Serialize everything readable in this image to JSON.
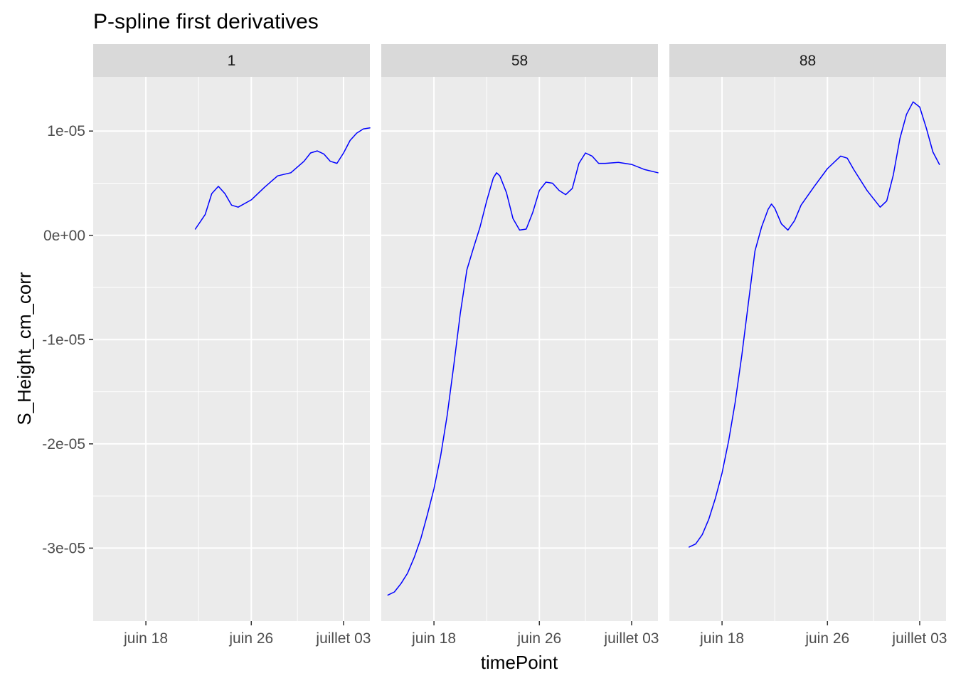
{
  "chart_data": {
    "type": "line",
    "title": "P-spline first derivatives",
    "xlabel": "timePoint",
    "ylabel": "S_Height_cm_corr",
    "x_tick_labels": [
      "juin 18",
      "juin 26",
      "juillet 03"
    ],
    "x_ticks": [
      "2019-06-18",
      "2019-06-26",
      "2019-07-03"
    ],
    "x_range": [
      "2019-06-14",
      "2019-07-05"
    ],
    "y_tick_labels": [
      "-3e-05",
      "-2e-05",
      "-1e-05",
      "0e+00",
      "1e-05"
    ],
    "y_ticks": [
      -3e-05,
      -2e-05,
      -1e-05,
      0,
      1e-05
    ],
    "ylim": [
      -3.7e-05,
      1.52e-05
    ],
    "line_color": "#0000ff",
    "grid": true,
    "legend": "none",
    "panels": [
      {
        "label": "1",
        "points": [
          [
            "2019-06-21T18:00",
            6e-07
          ],
          [
            "2019-06-22T12:00",
            2e-06
          ],
          [
            "2019-06-23T00:00",
            4e-06
          ],
          [
            "2019-06-23T12:00",
            4.7e-06
          ],
          [
            "2019-06-24T00:00",
            4e-06
          ],
          [
            "2019-06-24T12:00",
            2.9e-06
          ],
          [
            "2019-06-25T00:00",
            2.7e-06
          ],
          [
            "2019-06-26T00:00",
            3.4e-06
          ],
          [
            "2019-06-27T00:00",
            4.6e-06
          ],
          [
            "2019-06-28T00:00",
            5.7e-06
          ],
          [
            "2019-06-29T00:00",
            6e-06
          ],
          [
            "2019-06-30T00:00",
            7.1e-06
          ],
          [
            "2019-06-30T12:00",
            7.9e-06
          ],
          [
            "2019-07-01T00:00",
            8.1e-06
          ],
          [
            "2019-07-01T12:00",
            7.8e-06
          ],
          [
            "2019-07-02T00:00",
            7.1e-06
          ],
          [
            "2019-07-02T12:00",
            6.9e-06
          ],
          [
            "2019-07-03T00:00",
            7.9e-06
          ],
          [
            "2019-07-03T12:00",
            9.1e-06
          ],
          [
            "2019-07-04T00:00",
            9.8e-06
          ],
          [
            "2019-07-04T12:00",
            1.02e-05
          ],
          [
            "2019-07-05T00:00",
            1.03e-05
          ]
        ]
      },
      {
        "label": "58",
        "points": [
          [
            "2019-06-14T12:00",
            -3.45e-05
          ],
          [
            "2019-06-15T00:00",
            -3.42e-05
          ],
          [
            "2019-06-15T12:00",
            -3.34e-05
          ],
          [
            "2019-06-16T00:00",
            -3.24e-05
          ],
          [
            "2019-06-16T12:00",
            -3.09e-05
          ],
          [
            "2019-06-17T00:00",
            -2.91e-05
          ],
          [
            "2019-06-17T12:00",
            -2.68e-05
          ],
          [
            "2019-06-18T00:00",
            -2.43e-05
          ],
          [
            "2019-06-18T12:00",
            -2.12e-05
          ],
          [
            "2019-06-19T00:00",
            -1.73e-05
          ],
          [
            "2019-06-19T12:00",
            -1.25e-05
          ],
          [
            "2019-06-20T00:00",
            -7.5e-06
          ],
          [
            "2019-06-20T12:00",
            -3.3e-06
          ],
          [
            "2019-06-21T00:00",
            -1.2e-06
          ],
          [
            "2019-06-21T12:00",
            8e-07
          ],
          [
            "2019-06-22T00:00",
            3.3e-06
          ],
          [
            "2019-06-22T12:00",
            5.5e-06
          ],
          [
            "2019-06-22T18:00",
            6e-06
          ],
          [
            "2019-06-23T00:00",
            5.7e-06
          ],
          [
            "2019-06-23T12:00",
            4.1e-06
          ],
          [
            "2019-06-24T00:00",
            1.6e-06
          ],
          [
            "2019-06-24T12:00",
            5e-07
          ],
          [
            "2019-06-25T00:00",
            6e-07
          ],
          [
            "2019-06-25T12:00",
            2.2e-06
          ],
          [
            "2019-06-26T00:00",
            4.3e-06
          ],
          [
            "2019-06-26T12:00",
            5.1e-06
          ],
          [
            "2019-06-27T00:00",
            5e-06
          ],
          [
            "2019-06-27T12:00",
            4.3e-06
          ],
          [
            "2019-06-28T00:00",
            3.9e-06
          ],
          [
            "2019-06-28T12:00",
            4.5e-06
          ],
          [
            "2019-06-29T00:00",
            6.9e-06
          ],
          [
            "2019-06-29T12:00",
            7.9e-06
          ],
          [
            "2019-06-30T00:00",
            7.6e-06
          ],
          [
            "2019-06-30T12:00",
            6.9e-06
          ],
          [
            "2019-07-01T00:00",
            6.9e-06
          ],
          [
            "2019-07-02T00:00",
            7e-06
          ],
          [
            "2019-07-03T00:00",
            6.8e-06
          ],
          [
            "2019-07-04T00:00",
            6.3e-06
          ],
          [
            "2019-07-05T00:00",
            6e-06
          ]
        ]
      },
      {
        "label": "88",
        "points": [
          [
            "2019-06-15T12:00",
            -2.99e-05
          ],
          [
            "2019-06-16T00:00",
            -2.96e-05
          ],
          [
            "2019-06-16T12:00",
            -2.87e-05
          ],
          [
            "2019-06-17T00:00",
            -2.72e-05
          ],
          [
            "2019-06-17T12:00",
            -2.52e-05
          ],
          [
            "2019-06-18T00:00",
            -2.28e-05
          ],
          [
            "2019-06-18T12:00",
            -1.97e-05
          ],
          [
            "2019-06-19T00:00",
            -1.6e-05
          ],
          [
            "2019-06-19T12:00",
            -1.15e-05
          ],
          [
            "2019-06-20T00:00",
            -6.5e-06
          ],
          [
            "2019-06-20T12:00",
            -1.5e-06
          ],
          [
            "2019-06-21T00:00",
            8e-07
          ],
          [
            "2019-06-21T12:00",
            2.5e-06
          ],
          [
            "2019-06-21T18:00",
            3e-06
          ],
          [
            "2019-06-22T00:00",
            2.6e-06
          ],
          [
            "2019-06-22T12:00",
            1.1e-06
          ],
          [
            "2019-06-23T00:00",
            5e-07
          ],
          [
            "2019-06-23T12:00",
            1.4e-06
          ],
          [
            "2019-06-24T00:00",
            2.9e-06
          ],
          [
            "2019-06-25T00:00",
            4.7e-06
          ],
          [
            "2019-06-26T00:00",
            6.4e-06
          ],
          [
            "2019-06-27T00:00",
            7.6e-06
          ],
          [
            "2019-06-27T12:00",
            7.4e-06
          ],
          [
            "2019-06-28T00:00",
            6.3e-06
          ],
          [
            "2019-06-29T00:00",
            4.3e-06
          ],
          [
            "2019-06-30T00:00",
            2.7e-06
          ],
          [
            "2019-06-30T12:00",
            3.3e-06
          ],
          [
            "2019-07-01T00:00",
            5.8e-06
          ],
          [
            "2019-07-01T12:00",
            9.3e-06
          ],
          [
            "2019-07-02T00:00",
            1.16e-05
          ],
          [
            "2019-07-02T12:00",
            1.28e-05
          ],
          [
            "2019-07-03T00:00",
            1.23e-05
          ],
          [
            "2019-07-03T12:00",
            1.03e-05
          ],
          [
            "2019-07-04T00:00",
            8e-06
          ],
          [
            "2019-07-04T12:00",
            6.8e-06
          ]
        ]
      }
    ]
  }
}
